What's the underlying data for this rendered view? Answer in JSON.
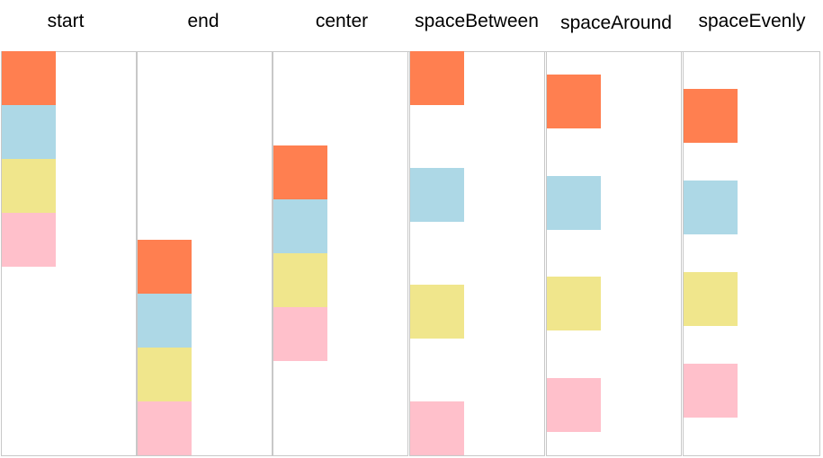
{
  "colors": {
    "block_1": "#ff7f50",
    "block_2": "#add8e6",
    "block_3": "#f0e68c",
    "block_4": "#ffc0cb",
    "border": "#c8c8c8"
  },
  "columns": [
    {
      "label": "start"
    },
    {
      "label": "end"
    },
    {
      "label": "center"
    },
    {
      "label": "spaceBetween"
    },
    {
      "label": "spaceAround"
    },
    {
      "label": "spaceEvenly"
    }
  ]
}
